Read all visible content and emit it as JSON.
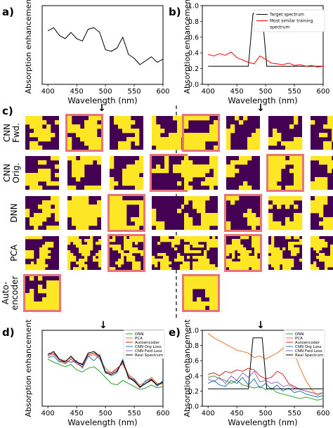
{
  "chart_data": [
    {
      "panel_label": "a)",
      "type": "line",
      "xlabel": "Wavelength (nm)",
      "ylabel": "Absorption enhancement",
      "xlim": [
        390,
        600
      ],
      "ylim": [
        0,
        1.0
      ],
      "xticks": [
        400,
        450,
        500,
        550,
        600
      ],
      "series": [
        {
          "color": "#000000",
          "x": [
            400,
            410,
            420,
            430,
            440,
            450,
            460,
            470,
            480,
            490,
            500,
            510,
            520,
            530,
            540,
            550,
            560,
            570,
            580,
            590,
            600
          ],
          "y": [
            0.68,
            0.72,
            0.62,
            0.58,
            0.66,
            0.58,
            0.55,
            0.7,
            0.72,
            0.66,
            0.44,
            0.42,
            0.46,
            0.6,
            0.38,
            0.33,
            0.25,
            0.3,
            0.35,
            0.28,
            0.32
          ]
        }
      ]
    },
    {
      "panel_label": "b)",
      "type": "line",
      "xlabel": "Wavelength (nm)",
      "ylabel": "Absorption enhancement",
      "xlim": [
        390,
        600
      ],
      "ylim": [
        0,
        1.0
      ],
      "xticks": [
        400,
        450,
        500,
        550,
        600
      ],
      "yticks": [
        0.0,
        0.2,
        0.4,
        0.6,
        0.8,
        1.0
      ],
      "legend": {
        "position": "top-right",
        "entries": [
          "Target spectrum",
          "Most similar training spectrum"
        ]
      },
      "series": [
        {
          "name": "Target spectrum",
          "color": "#000000",
          "x": [
            400,
            470,
            478,
            494,
            502,
            600
          ],
          "y": [
            0.23,
            0.23,
            0.9,
            0.9,
            0.23,
            0.23
          ]
        },
        {
          "name": "Most similar training spectrum",
          "color": "#ff0000",
          "x": [
            400,
            410,
            420,
            430,
            440,
            450,
            460,
            470,
            480,
            490,
            500,
            510,
            520,
            530,
            540,
            550,
            560,
            570,
            580,
            590,
            600
          ],
          "y": [
            0.38,
            0.36,
            0.39,
            0.37,
            0.41,
            0.34,
            0.31,
            0.28,
            0.26,
            0.36,
            0.32,
            0.27,
            0.26,
            0.25,
            0.27,
            0.24,
            0.25,
            0.23,
            0.24,
            0.22,
            0.23
          ]
        }
      ]
    },
    {
      "panel_label": "d)",
      "type": "line",
      "xlabel": "Wavelength (nm)",
      "ylabel": "Absorption enhancement",
      "xlim": [
        390,
        600
      ],
      "ylim": [
        0,
        1.0
      ],
      "xticks": [
        400,
        450,
        500,
        550,
        600
      ],
      "legend": {
        "position": "top-right",
        "entries": [
          "DNN",
          "PCA",
          "Autoencoder",
          "CNN Org Loss",
          "CNN Fwd Loss",
          "Real Spectrum"
        ]
      },
      "series": [
        {
          "name": "DNN",
          "color": "#2ca02c",
          "x": [
            400,
            410,
            420,
            430,
            440,
            450,
            460,
            470,
            480,
            490,
            500,
            510,
            520,
            530,
            540,
            550,
            560,
            570,
            580,
            590,
            600
          ],
          "y": [
            0.62,
            0.58,
            0.55,
            0.52,
            0.55,
            0.48,
            0.45,
            0.5,
            0.52,
            0.46,
            0.38,
            0.3,
            0.28,
            0.34,
            0.3,
            0.26,
            0.22,
            0.24,
            0.28,
            0.24,
            0.26
          ]
        },
        {
          "name": "PCA",
          "color": "#e8772e",
          "x": [
            400,
            410,
            420,
            430,
            440,
            450,
            460,
            470,
            480,
            490,
            500,
            510,
            520,
            530,
            540,
            550,
            560,
            570,
            580,
            590,
            600
          ],
          "y": [
            0.7,
            0.68,
            0.62,
            0.6,
            0.64,
            0.58,
            0.56,
            0.66,
            0.68,
            0.62,
            0.5,
            0.44,
            0.48,
            0.58,
            0.42,
            0.36,
            0.28,
            0.32,
            0.38,
            0.3,
            0.3
          ]
        },
        {
          "name": "Autoencoder",
          "color": "#d62728",
          "x": [
            400,
            410,
            420,
            430,
            440,
            450,
            460,
            470,
            480,
            490,
            500,
            510,
            520,
            530,
            540,
            550,
            560,
            570,
            580,
            590,
            600
          ],
          "y": [
            0.66,
            0.7,
            0.6,
            0.56,
            0.62,
            0.56,
            0.52,
            0.68,
            0.7,
            0.64,
            0.46,
            0.44,
            0.5,
            0.56,
            0.4,
            0.34,
            0.26,
            0.3,
            0.34,
            0.28,
            0.3
          ]
        },
        {
          "name": "CNN Org Loss",
          "color": "#1f77b4",
          "x": [
            400,
            410,
            420,
            430,
            440,
            450,
            460,
            470,
            480,
            490,
            500,
            510,
            520,
            530,
            540,
            550,
            560,
            570,
            580,
            590,
            600
          ],
          "y": [
            0.64,
            0.66,
            0.58,
            0.6,
            0.58,
            0.6,
            0.5,
            0.66,
            0.6,
            0.68,
            0.46,
            0.4,
            0.44,
            0.62,
            0.36,
            0.36,
            0.24,
            0.34,
            0.36,
            0.26,
            0.34
          ]
        },
        {
          "name": "CNN Fwd Loss",
          "color": "#9467bd",
          "x": [
            400,
            410,
            420,
            430,
            440,
            450,
            460,
            470,
            480,
            490,
            500,
            510,
            520,
            530,
            540,
            550,
            560,
            570,
            580,
            590,
            600
          ],
          "y": [
            0.68,
            0.72,
            0.6,
            0.58,
            0.66,
            0.56,
            0.54,
            0.7,
            0.72,
            0.64,
            0.44,
            0.42,
            0.46,
            0.6,
            0.38,
            0.33,
            0.25,
            0.3,
            0.36,
            0.28,
            0.32
          ]
        },
        {
          "name": "Real Spectrum",
          "color": "#000000",
          "x": [
            400,
            410,
            420,
            430,
            440,
            450,
            460,
            470,
            480,
            490,
            500,
            510,
            520,
            530,
            540,
            550,
            560,
            570,
            580,
            590,
            600
          ],
          "y": [
            0.68,
            0.72,
            0.62,
            0.58,
            0.66,
            0.58,
            0.55,
            0.7,
            0.72,
            0.66,
            0.44,
            0.42,
            0.46,
            0.6,
            0.38,
            0.33,
            0.25,
            0.3,
            0.35,
            0.28,
            0.32
          ]
        }
      ]
    },
    {
      "panel_label": "e)",
      "type": "line",
      "xlabel": "Wavelength (nm)",
      "ylabel": "Absorption enhancement",
      "xlim": [
        390,
        600
      ],
      "ylim": [
        0,
        1.0
      ],
      "xticks": [
        400,
        450,
        500,
        550,
        600
      ],
      "yticks": [
        0.0,
        0.2,
        0.4,
        0.6,
        0.8,
        1.0
      ],
      "legend": {
        "position": "top-right",
        "entries": [
          "DNN",
          "PCA",
          "Autoencoder",
          "CNN Org Loss",
          "CNN Fwd Loss",
          "Real Spectrum"
        ]
      },
      "series": [
        {
          "name": "DNN",
          "color": "#2ca02c",
          "x": [
            400,
            410,
            420,
            430,
            440,
            450,
            460,
            470,
            480,
            490,
            500,
            510,
            520,
            530,
            540,
            550,
            560,
            570,
            580,
            590,
            600
          ],
          "y": [
            0.38,
            0.4,
            0.36,
            0.34,
            0.3,
            0.34,
            0.28,
            0.26,
            0.24,
            0.26,
            0.22,
            0.24,
            0.18,
            0.16,
            0.14,
            0.12,
            0.1,
            0.12,
            0.1,
            0.08,
            0.1
          ]
        },
        {
          "name": "PCA",
          "color": "#e8772e",
          "x": [
            400,
            410,
            420,
            430,
            440,
            450,
            460,
            470,
            480,
            490,
            500,
            510,
            520,
            530,
            540,
            550,
            560,
            570,
            580,
            590,
            600
          ],
          "y": [
            0.96,
            0.9,
            0.86,
            0.82,
            0.78,
            0.74,
            0.72,
            0.7,
            0.64,
            0.66,
            0.62,
            0.66,
            0.7,
            0.76,
            0.86,
            0.7,
            0.5,
            0.34,
            0.22,
            0.14,
            0.18
          ]
        },
        {
          "name": "Autoencoder",
          "color": "#d62728",
          "x": [
            400,
            410,
            420,
            430,
            440,
            450,
            460,
            470,
            480,
            490,
            500,
            510,
            520,
            530,
            540,
            550,
            560,
            570,
            580,
            590,
            600
          ],
          "y": [
            0.42,
            0.44,
            0.4,
            0.46,
            0.44,
            0.48,
            0.46,
            0.5,
            0.48,
            0.4,
            0.36,
            0.38,
            0.46,
            0.42,
            0.3,
            0.26,
            0.22,
            0.2,
            0.18,
            0.16,
            0.18
          ]
        },
        {
          "name": "CNN Org Loss",
          "color": "#1f77b4",
          "x": [
            400,
            410,
            420,
            430,
            440,
            450,
            460,
            470,
            480,
            490,
            500,
            510,
            520,
            530,
            540,
            550,
            560,
            570,
            580,
            590,
            600
          ],
          "y": [
            0.3,
            0.34,
            0.28,
            0.26,
            0.34,
            0.3,
            0.38,
            0.28,
            0.36,
            0.24,
            0.3,
            0.22,
            0.28,
            0.2,
            0.24,
            0.18,
            0.2,
            0.16,
            0.14,
            0.12,
            0.14
          ]
        },
        {
          "name": "CNN Fwd Loss",
          "color": "#9467bd",
          "x": [
            400,
            410,
            420,
            430,
            440,
            450,
            460,
            470,
            480,
            490,
            500,
            510,
            520,
            530,
            540,
            550,
            560,
            570,
            580,
            590,
            600
          ],
          "y": [
            0.36,
            0.32,
            0.38,
            0.3,
            0.4,
            0.34,
            0.44,
            0.38,
            0.46,
            0.32,
            0.34,
            0.3,
            0.32,
            0.26,
            0.28,
            0.24,
            0.22,
            0.2,
            0.18,
            0.16,
            0.18
          ]
        },
        {
          "name": "Real Spectrum",
          "color": "#000000",
          "x": [
            400,
            470,
            478,
            494,
            502,
            600
          ],
          "y": [
            0.23,
            0.23,
            0.9,
            0.9,
            0.23,
            0.23
          ]
        }
      ]
    }
  ],
  "grid_panel": {
    "panel_label": "c)",
    "row_labels": [
      "CNN Fwd.",
      "CNN Orig.",
      "DNN",
      "PCA",
      "Auto-encoder"
    ],
    "cell_fill_color": "#440154",
    "cell_shape_color": "#fde725",
    "highlight_color": "#e8747c",
    "left_highlight_columns": [
      1,
      3,
      2,
      2,
      0
    ],
    "right_highlight_columns": [
      0,
      2,
      1,
      1,
      0
    ]
  },
  "arrows": "↓"
}
